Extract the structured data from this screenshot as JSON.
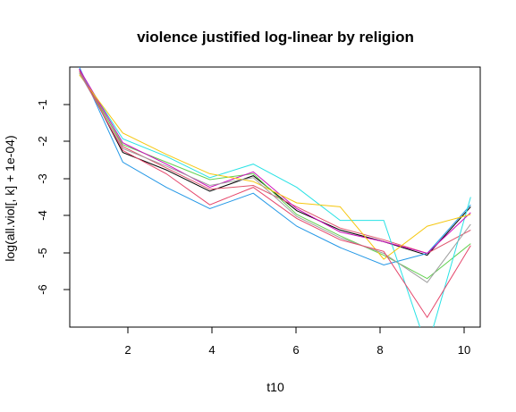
{
  "chart_data": {
    "type": "line",
    "title": "violence justified log-linear by religion",
    "xlabel": "t10",
    "ylabel": "log(all.viol[, k] + 1e-04)",
    "x": [
      1,
      2,
      3,
      4,
      5,
      6,
      7,
      8,
      9,
      10
    ],
    "xlim": [
      0.78,
      10.22
    ],
    "ylim": [
      -6.95,
      -0.25
    ],
    "xticks": [
      "2",
      "4",
      "6",
      "8",
      "10"
    ],
    "yticks": [
      "-1",
      "-2",
      "-3",
      "-4",
      "-5",
      "-6"
    ],
    "grid": false,
    "legend": "none",
    "series": [
      {
        "color": "#000000",
        "values": [
          -0.3,
          -2.45,
          -2.9,
          -3.45,
          -3.05,
          -3.95,
          -4.45,
          -4.75,
          -5.1,
          -3.85
        ]
      },
      {
        "color": "#DF536B",
        "values": [
          -0.3,
          -2.3,
          -2.85,
          -3.4,
          -3.3,
          -3.85,
          -4.4,
          -4.7,
          -5.05,
          -4.45
        ]
      },
      {
        "color": "#61D04F",
        "values": [
          -0.4,
          -2.25,
          -2.7,
          -3.15,
          -3.0,
          -4.05,
          -4.6,
          -5.1,
          -5.7,
          -4.8
        ]
      },
      {
        "color": "#2297E6",
        "values": [
          -0.25,
          -2.7,
          -3.35,
          -3.9,
          -3.5,
          -4.35,
          -4.9,
          -5.35,
          -5.05,
          -3.8
        ]
      },
      {
        "color": "#28E2E5",
        "values": [
          -0.35,
          -2.1,
          -2.55,
          -3.1,
          -2.75,
          -3.35,
          -4.2,
          -4.2,
          -7.5,
          -3.6
        ]
      },
      {
        "color": "#CD0BBC",
        "values": [
          -0.3,
          -2.2,
          -2.75,
          -3.35,
          -2.95,
          -3.9,
          -4.5,
          -4.75,
          -5.05,
          -4.0
        ]
      },
      {
        "color": "#F5C710",
        "values": [
          -0.45,
          -1.95,
          -2.5,
          -3.0,
          -3.2,
          -3.75,
          -3.85,
          -5.2,
          -4.35,
          -4.05
        ]
      },
      {
        "color": "#9E9E9E",
        "values": [
          -0.4,
          -2.35,
          -2.8,
          -3.3,
          -3.1,
          -4.1,
          -4.65,
          -5.05,
          -5.8,
          -4.3
        ]
      },
      {
        "color": "#E5456A",
        "values": [
          -0.35,
          -2.4,
          -3.0,
          -3.8,
          -3.35,
          -4.15,
          -4.7,
          -5.0,
          -6.7,
          -4.85
        ]
      }
    ]
  }
}
